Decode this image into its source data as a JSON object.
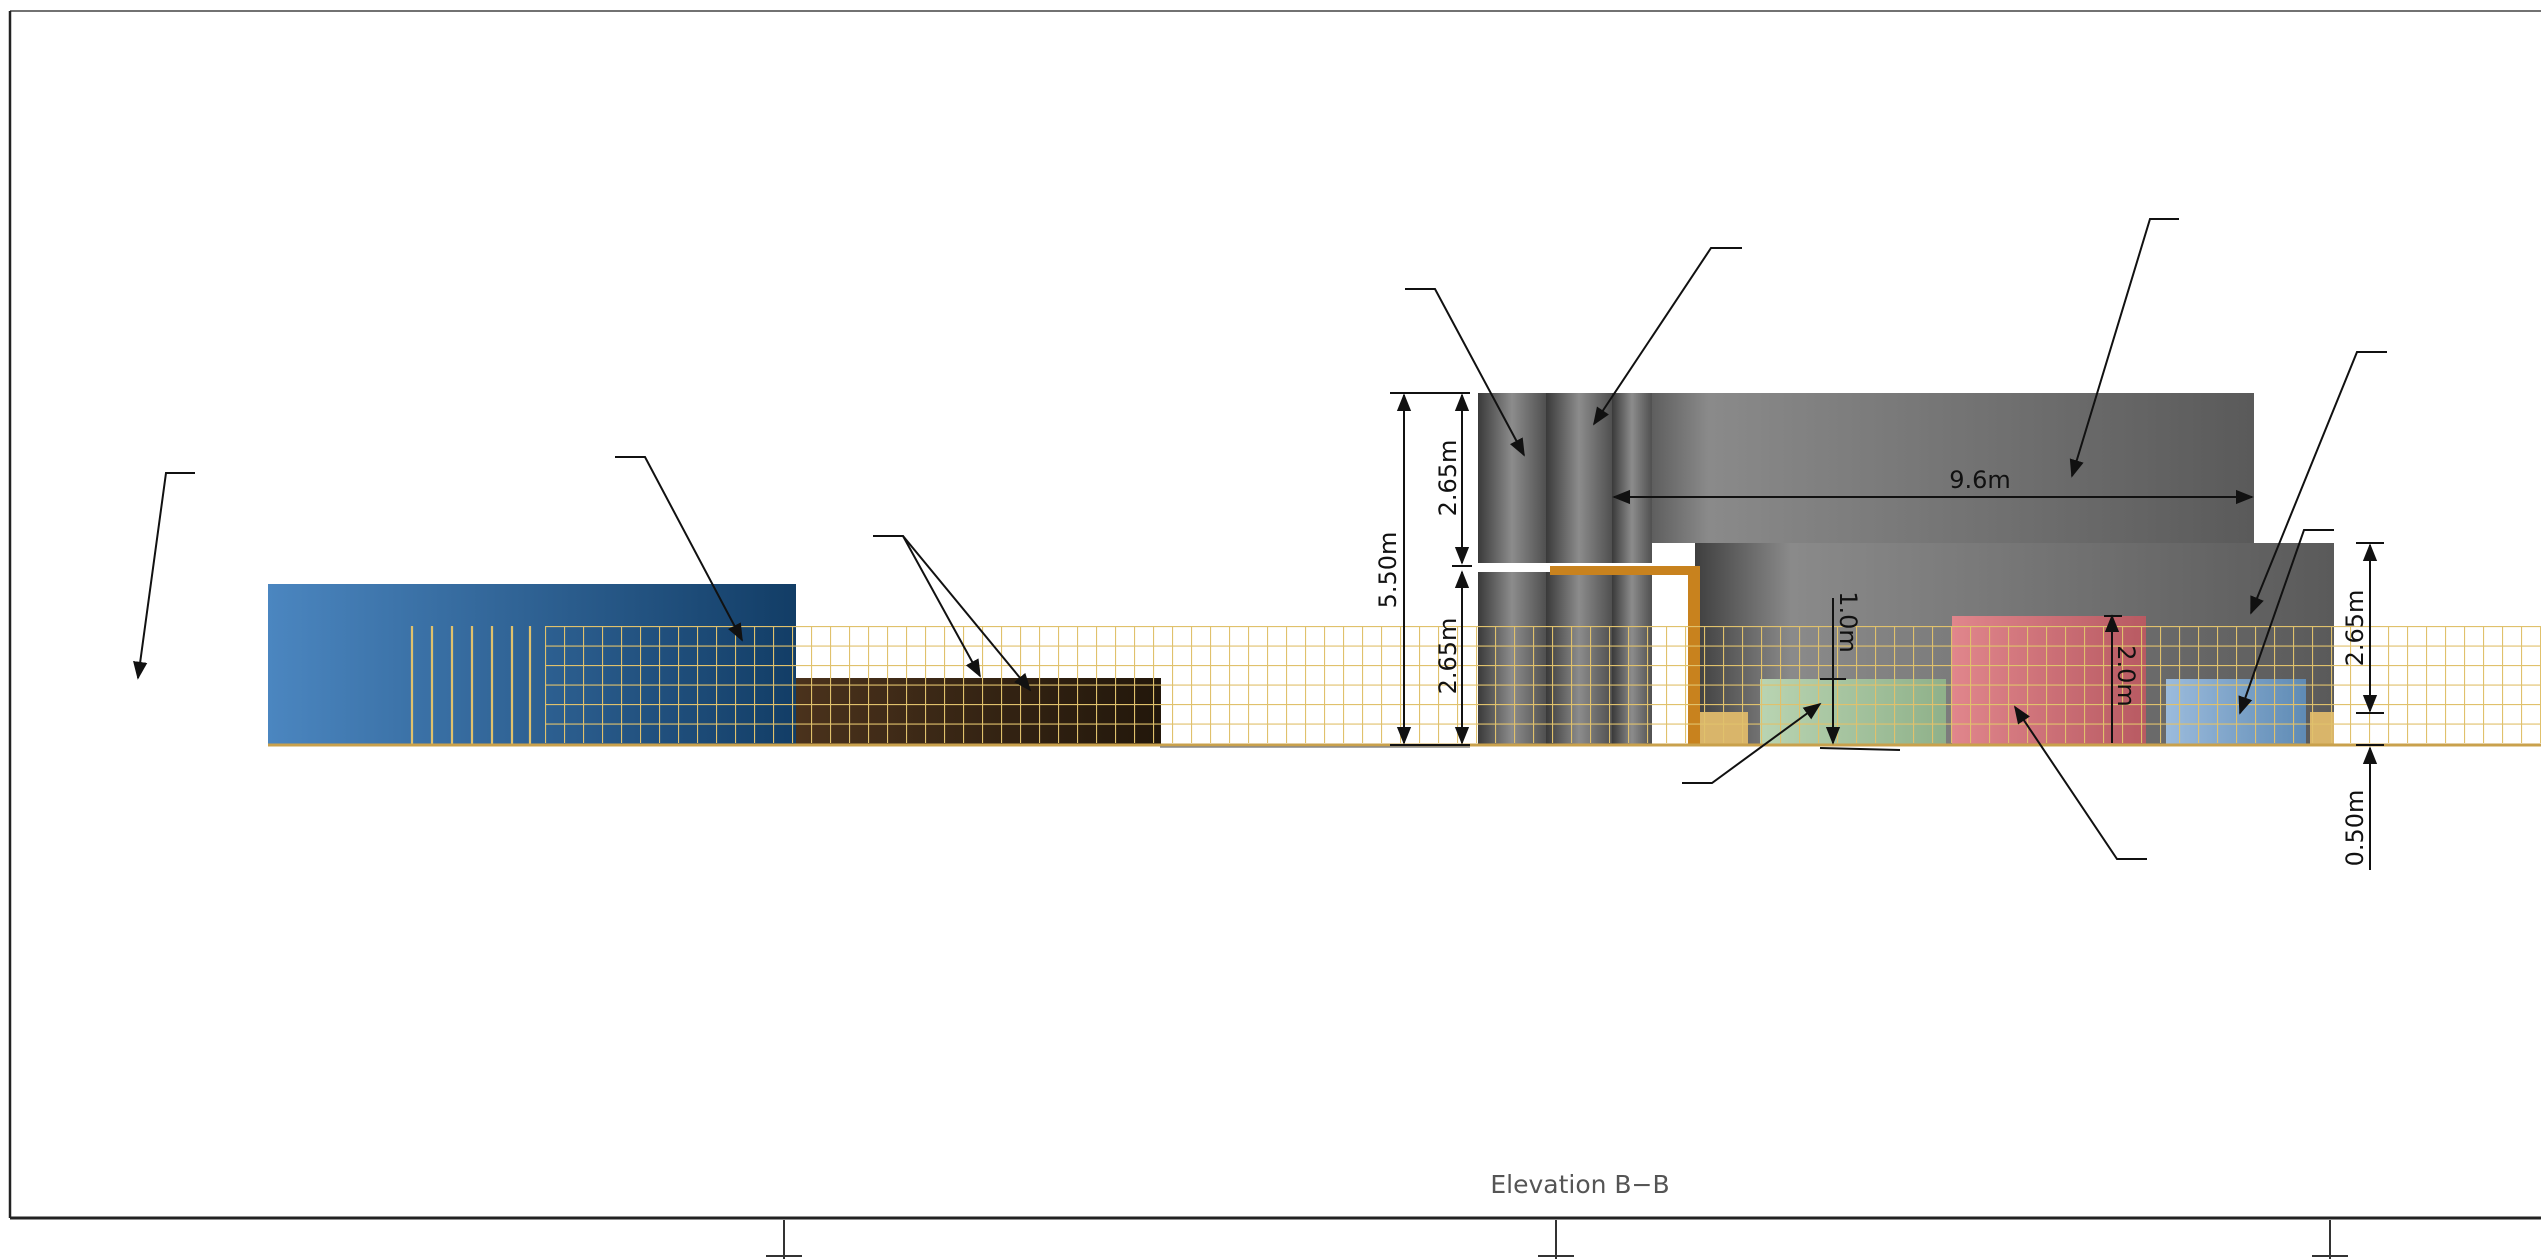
{
  "drawing": {
    "title": "Elevation B−B",
    "dimensions": {
      "total_height": "5.50m",
      "upper_height": "2.65m",
      "lower_height": "2.65m",
      "roof_span": "9.6m",
      "window_height": "1.0m",
      "door_height": "2.0m",
      "right_height": "2.65m",
      "plinth_height": "0.50m"
    }
  },
  "colors": {
    "blue_block": "#2f6aa0",
    "brown_block": "#3a2614",
    "grey_block": "#5c5c5c",
    "pink_block": "#d9737a",
    "lightblue_block": "#7fa6cc",
    "green_block": "#a9c7a4",
    "orange_frame": "#c8821e",
    "grid_lines": "#e0c16c",
    "leader_lines": "#111111"
  }
}
